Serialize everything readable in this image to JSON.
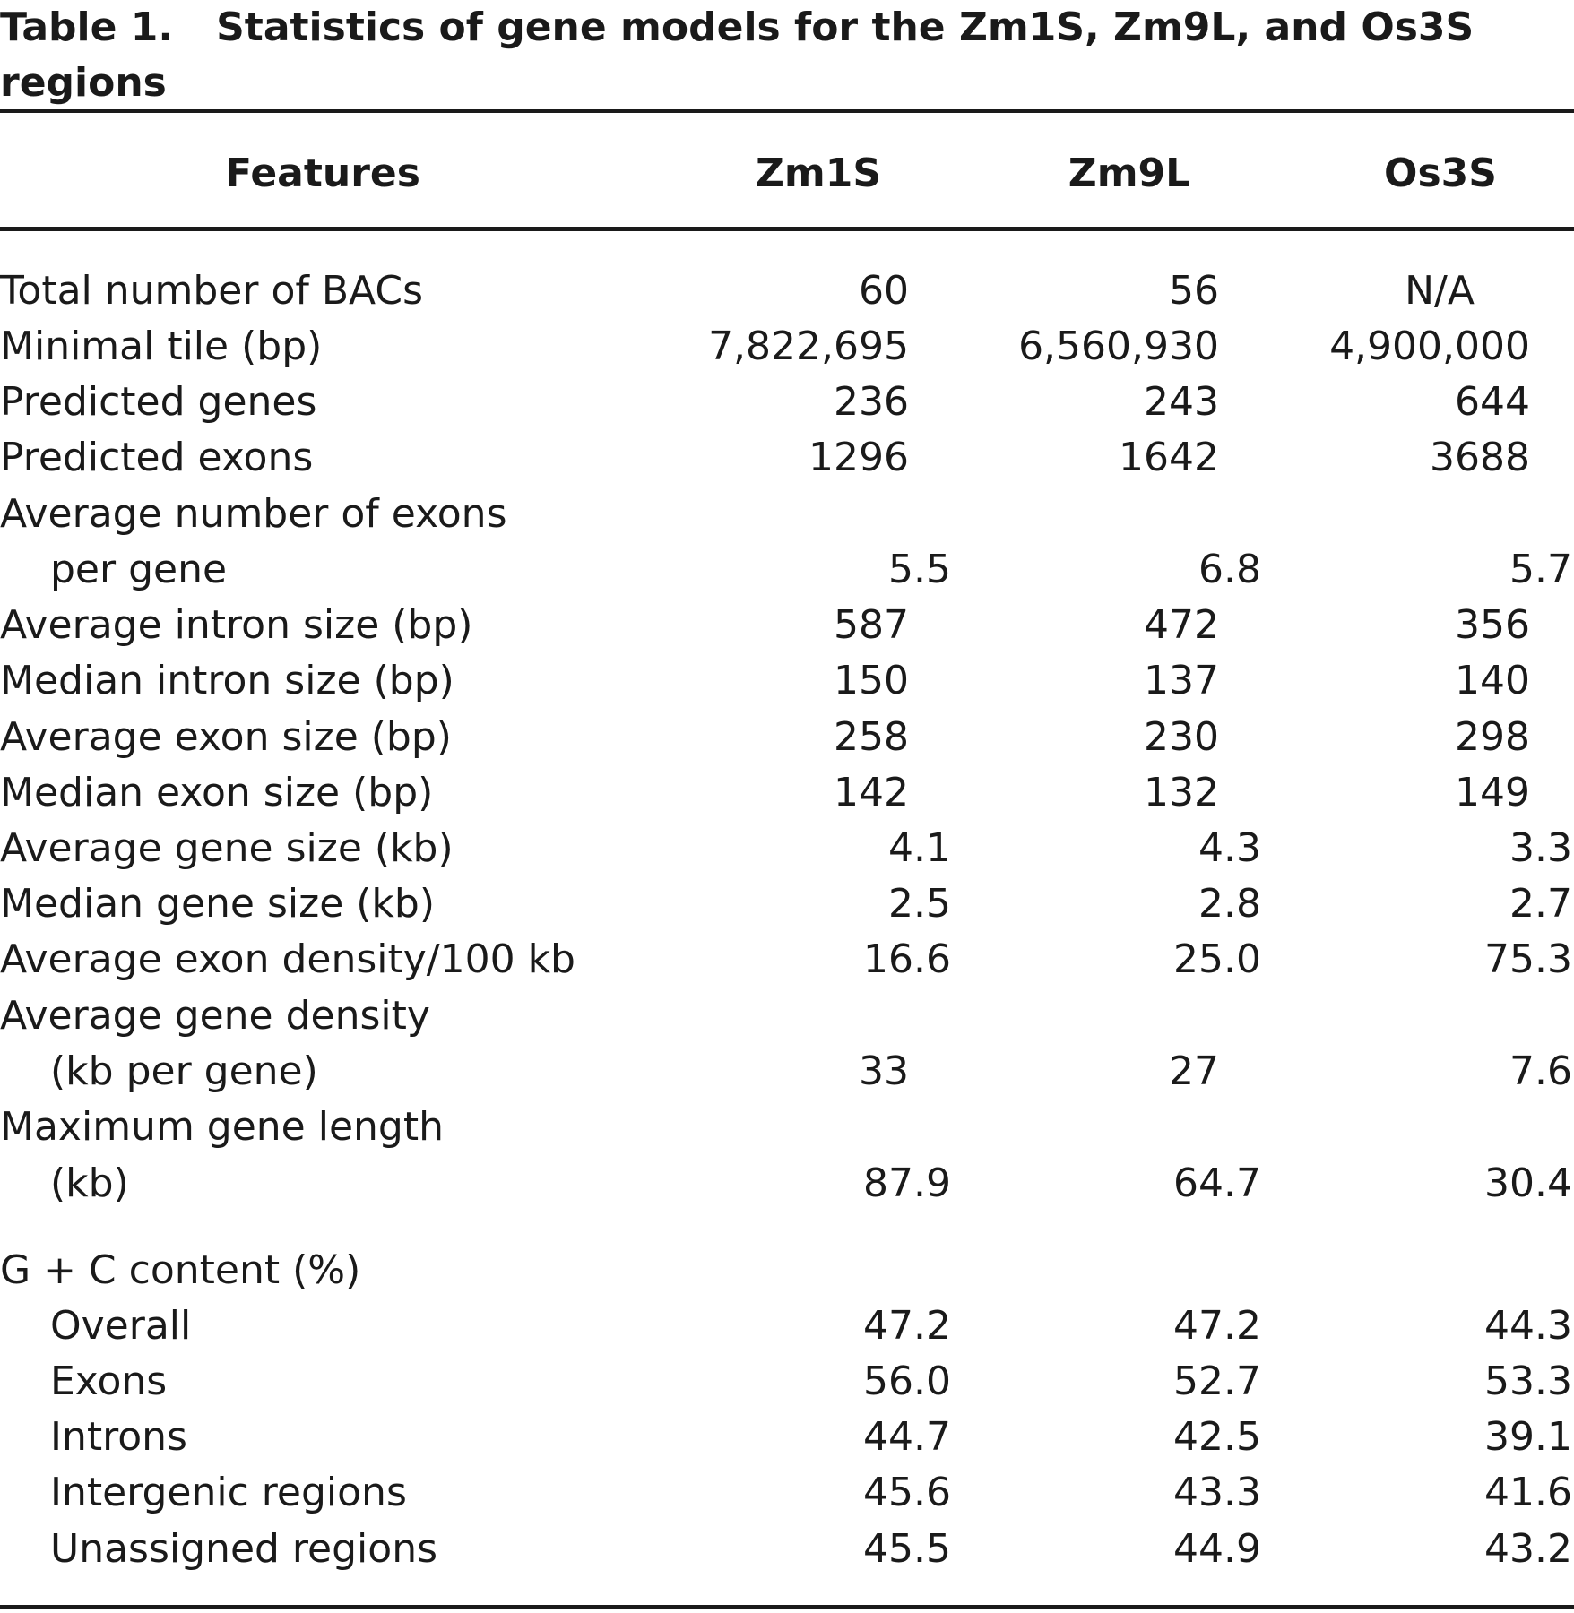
{
  "caption": {
    "label": "Table 1.",
    "title_line1": "Statistics of gene models for the Zm1S, Zm9L, and Os3S",
    "title_line2": "regions"
  },
  "header": {
    "features": "Features",
    "col1": "Zm1S",
    "col2": "Zm9L",
    "col3": "Os3S"
  },
  "rows": [
    {
      "label": "Total number of BACs",
      "v1": "60",
      "v2": "56",
      "v3": "N/A"
    },
    {
      "label": "Minimal tile (bp)",
      "v1": "7,822,695",
      "v2": "6,560,930",
      "v3": "4,900,000"
    },
    {
      "label": "Predicted genes",
      "v1": "236",
      "v2": "243",
      "v3": "644"
    },
    {
      "label": "Predicted exons",
      "v1": "1296",
      "v2": "1642",
      "v3": "3688"
    },
    {
      "label": "Average number of exons",
      "label2": "per gene",
      "v1": "5.5",
      "v2": "6.8",
      "v3": "5.7"
    },
    {
      "label": "Average intron size (bp)",
      "v1": "587",
      "v2": "472",
      "v3": "356"
    },
    {
      "label": "Median intron size (bp)",
      "v1": "150",
      "v2": "137",
      "v3": "140"
    },
    {
      "label": "Average exon size (bp)",
      "v1": "258",
      "v2": "230",
      "v3": "298"
    },
    {
      "label": "Median exon size (bp)",
      "v1": "142",
      "v2": "132",
      "v3": "149"
    },
    {
      "label": "Average gene size (kb)",
      "v1": "4.1",
      "v2": "4.3",
      "v3": "3.3"
    },
    {
      "label": "Median gene size (kb)",
      "v1": "2.5",
      "v2": "2.8",
      "v3": "2.7"
    },
    {
      "label": "Average exon density/100 kb",
      "v1": "16.6",
      "v2": "25.0",
      "v3": "75.3"
    },
    {
      "label": "Average gene density",
      "label2": "(kb per gene)",
      "v1": "33",
      "v2": "27",
      "v3": "7.6"
    },
    {
      "label": "Maximum gene length",
      "label2": "(kb)",
      "v1": "87.9",
      "v2": "64.7",
      "v3": "30.4"
    },
    {
      "label": "G + C content (%)"
    },
    {
      "label": "Overall",
      "v1": "47.2",
      "v2": "47.2",
      "v3": "44.3"
    },
    {
      "label": "Exons",
      "v1": "56.0",
      "v2": "52.7",
      "v3": "53.3"
    },
    {
      "label": "Introns",
      "v1": "44.7",
      "v2": "42.5",
      "v3": "39.1"
    },
    {
      "label": "Intergenic regions",
      "v1": "45.6",
      "v2": "43.3",
      "v3": "41.6"
    },
    {
      "label": "Unassigned regions",
      "v1": "45.5",
      "v2": "44.9",
      "v3": "43.2"
    }
  ]
}
